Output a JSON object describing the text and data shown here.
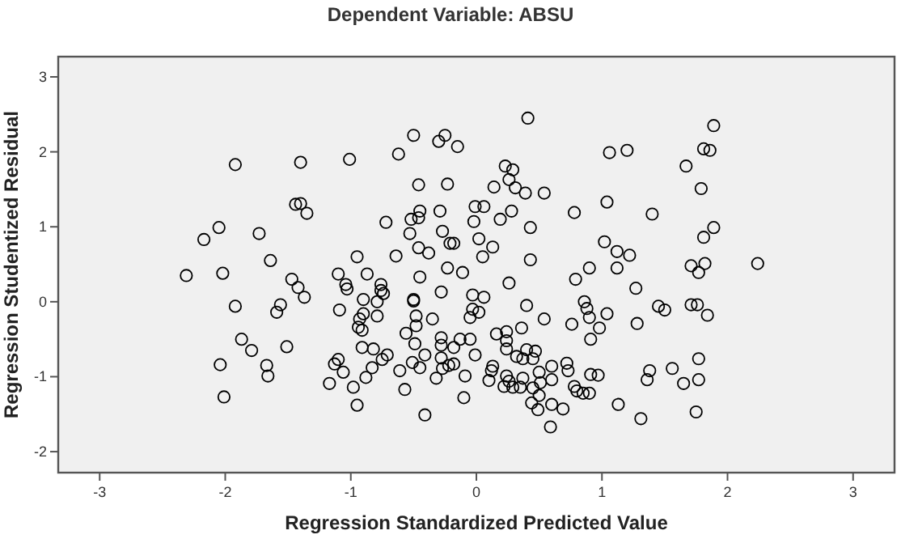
{
  "chart_data": {
    "type": "scatter",
    "title": "Dependent Variable: ABSU",
    "xlabel": "Regression Standardized Predicted Value",
    "ylabel": "Regression Studentized Residual",
    "xlim": [
      -3.33,
      3.33
    ],
    "ylim": [
      -2.28,
      3.27
    ],
    "xticks": [
      -3,
      -2,
      -1,
      0,
      1,
      2,
      3
    ],
    "yticks": [
      -2,
      -1,
      0,
      1,
      2,
      3
    ],
    "grid": false,
    "marker": "circle",
    "series": [
      {
        "color": "#000000",
        "x": [
          -1.92,
          -1.4,
          -1.01,
          -0.62,
          -0.5,
          -0.3,
          -0.25,
          -1.44,
          -1.4,
          -1.35,
          -2.05,
          -2.17,
          -1.73,
          -1.64,
          -2.02,
          -2.31,
          -1.47,
          -1.42,
          -1.37,
          -1.1,
          -1.04,
          -1.03,
          -0.95,
          -0.87,
          -0.76,
          -0.76,
          -0.9,
          -0.72,
          -0.64,
          -0.53,
          -0.52,
          -0.46,
          -0.45,
          -0.46,
          -0.29,
          -0.27,
          -0.46,
          -0.38,
          -0.45,
          -0.5,
          -0.28,
          -0.23,
          -0.21,
          -0.23,
          0.41,
          -0.15,
          1.06,
          1.2,
          1.89,
          1.81,
          1.86,
          1.67,
          1.79,
          0.23,
          0.29,
          0.26,
          0.14,
          0.31,
          0.39,
          0.54,
          -0.01,
          0.06,
          0.28,
          0.19,
          -0.02,
          0.78,
          1.04,
          1.4,
          0.43,
          -0.18,
          0.02,
          0.13,
          0.05,
          0.43,
          1.02,
          1.12,
          1.22,
          0.9,
          1.12,
          0.79,
          1.27,
          1.89,
          1.81,
          2.24,
          1.71,
          1.82,
          1.77,
          -0.11,
          0.26,
          -0.03,
          0.06,
          -1.92,
          -1.56,
          -1.59,
          -1.87,
          -1.79,
          -1.51,
          -2.04,
          -1.67,
          -1.66,
          -2.01,
          -1.09,
          -0.94,
          -0.93,
          -0.9,
          -0.91,
          -0.79,
          -0.79,
          -0.74,
          -0.5,
          -0.48,
          -0.48,
          -0.56,
          -0.49,
          -0.35,
          -0.28,
          -0.28,
          -0.91,
          -0.82,
          -0.71,
          -0.75,
          -0.83,
          -1.1,
          -1.13,
          -1.06,
          -0.88,
          -1.17,
          -0.98,
          -0.95,
          -0.61,
          -0.51,
          -0.45,
          -0.41,
          -0.57,
          -0.32,
          -0.27,
          -0.41,
          -0.28,
          -0.05,
          0.02,
          -0.03,
          0.4,
          0.86,
          0.88,
          0.9,
          1.04,
          0.54,
          0.36,
          0.76,
          0.98,
          0.91,
          1.28,
          1.45,
          1.5,
          1.71,
          1.76,
          1.84,
          0.16,
          0.24,
          0.24,
          0.24,
          -0.05,
          -0.13,
          -0.18,
          -0.01,
          0.32,
          0.37,
          0.4,
          0.47,
          0.45,
          -0.18,
          -0.22,
          0.13,
          0.12,
          -0.09,
          0.1,
          0.24,
          0.26,
          0.37,
          0.22,
          0.29,
          0.35,
          0.5,
          0.6,
          0.72,
          0.73,
          0.6,
          0.51,
          0.45,
          0.5,
          -0.1,
          0.44,
          0.49,
          0.6,
          0.69,
          0.59,
          0.78,
          0.8,
          0.85,
          0.9,
          0.91,
          0.97,
          1.13,
          1.31,
          1.38,
          1.36,
          1.56,
          1.65,
          1.77,
          1.77,
          1.75
        ],
        "values": [
          1.83,
          1.86,
          1.9,
          1.97,
          2.22,
          2.14,
          2.22,
          1.3,
          1.31,
          1.18,
          0.99,
          0.83,
          0.91,
          0.55,
          0.38,
          0.35,
          0.3,
          0.19,
          0.06,
          0.37,
          0.23,
          0.17,
          0.6,
          0.37,
          0.23,
          0.15,
          0.03,
          1.06,
          0.61,
          0.91,
          1.1,
          1.12,
          1.21,
          1.56,
          1.21,
          0.94,
          0.72,
          0.65,
          0.33,
          0.01,
          0.13,
          1.57,
          0.78,
          0.45,
          2.45,
          2.07,
          1.99,
          2.02,
          2.35,
          2.04,
          2.02,
          1.81,
          1.51,
          1.81,
          1.76,
          1.63,
          1.53,
          1.52,
          1.45,
          1.45,
          1.27,
          1.27,
          1.21,
          1.1,
          1.07,
          1.19,
          1.33,
          1.17,
          0.99,
          0.78,
          0.84,
          0.73,
          0.6,
          0.56,
          0.8,
          0.67,
          0.62,
          0.45,
          0.45,
          0.3,
          0.18,
          0.99,
          0.86,
          0.51,
          0.48,
          0.51,
          0.39,
          0.39,
          0.25,
          0.09,
          0.06,
          -0.06,
          -0.04,
          -0.14,
          -0.5,
          -0.65,
          -0.6,
          -0.84,
          -0.85,
          -0.99,
          -1.27,
          -0.11,
          -0.34,
          -0.23,
          -0.16,
          -0.38,
          0.0,
          -0.19,
          0.11,
          0.03,
          -0.19,
          -0.32,
          -0.42,
          -0.56,
          -0.23,
          -0.48,
          -0.58,
          -0.61,
          -0.63,
          -0.71,
          -0.77,
          -0.88,
          -0.77,
          -0.83,
          -0.94,
          -1.01,
          -1.09,
          -1.14,
          -1.38,
          -0.92,
          -0.81,
          -0.88,
          -0.71,
          -1.17,
          -1.02,
          -0.89,
          -1.51,
          -0.75,
          -0.21,
          -0.14,
          -0.1,
          -0.05,
          0.0,
          -0.09,
          -0.21,
          -0.16,
          -0.23,
          -0.35,
          -0.3,
          -0.35,
          -0.5,
          -0.29,
          -0.06,
          -0.11,
          -0.04,
          -0.04,
          -0.18,
          -0.43,
          -0.4,
          -0.52,
          -0.63,
          -0.5,
          -0.5,
          -0.61,
          -0.71,
          -0.73,
          -0.76,
          -0.64,
          -0.66,
          -0.76,
          -0.83,
          -0.85,
          -0.86,
          -0.92,
          -0.99,
          -1.05,
          -0.99,
          -1.06,
          -1.02,
          -1.13,
          -1.14,
          -1.14,
          -0.94,
          -0.86,
          -0.82,
          -0.92,
          -1.04,
          -1.08,
          -1.15,
          -1.25,
          -1.28,
          -1.35,
          -1.44,
          -1.37,
          -1.43,
          -1.67,
          -1.13,
          -1.19,
          -1.22,
          -1.22,
          -0.97,
          -0.98,
          -1.37,
          -1.56,
          -0.92,
          -1.04,
          -0.89,
          -1.09,
          -1.04,
          -0.76,
          -1.47
        ]
      }
    ]
  }
}
